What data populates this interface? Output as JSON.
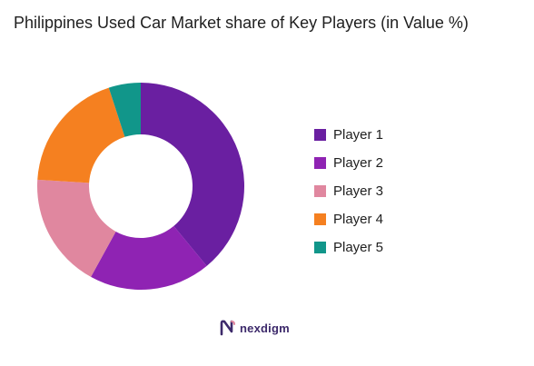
{
  "chart_data": {
    "type": "pie",
    "title": "Philippines Used Car Market share of Key Players (in Value %)",
    "donut": true,
    "legend_position": "right",
    "slices": [
      {
        "name": "Player 1",
        "value": 39,
        "color": "#6a1fa1"
      },
      {
        "name": "Player 2",
        "value": 19,
        "color": "#8f23b3"
      },
      {
        "name": "Player 3",
        "value": 18,
        "color": "#e0879f"
      },
      {
        "name": "Player 4",
        "value": 19,
        "color": "#f58020"
      },
      {
        "name": "Player 5",
        "value": 5,
        "color": "#11968a"
      }
    ]
  },
  "branding": {
    "logo_text": "nexdigm",
    "logo_color": "#3d2a6b",
    "logo_icon": "nexdigm-n-icon"
  }
}
